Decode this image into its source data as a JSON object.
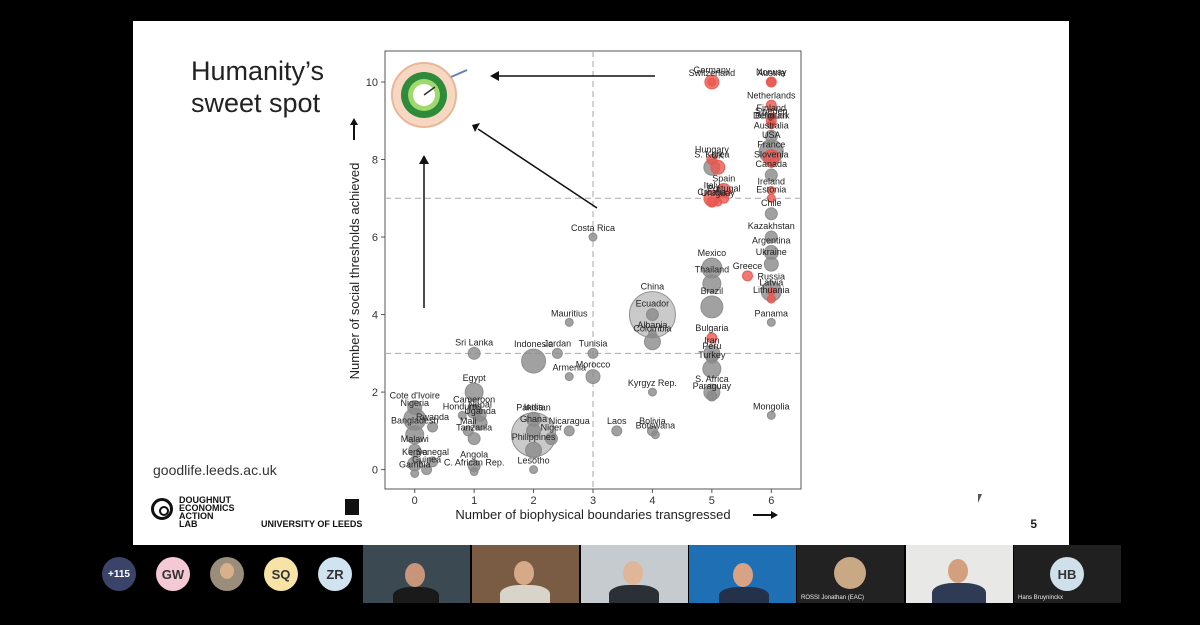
{
  "slide": {
    "title_line1": "Humanity’s",
    "title_line2": "sweet spot",
    "url": "goodlife.leeds.ac.uk",
    "page_number": "5",
    "logo_dea": "DOUGHNUT\nECONOMICS\nACTION\nLAB",
    "logo_leeds": "UNIVERSITY OF LEEDS"
  },
  "chart_data": {
    "type": "scatter",
    "xlabel": "Number of biophysical boundaries transgressed",
    "ylabel": "Number of social thresholds achieved",
    "xlim": [
      -0.5,
      6.5
    ],
    "ylim": [
      -0.5,
      10.8
    ],
    "xticks": [
      "0",
      "1",
      "2",
      "3",
      "4",
      "5",
      "6"
    ],
    "yticks": [
      "0",
      "2",
      "4",
      "6",
      "8",
      "10"
    ],
    "threshold_lines": {
      "x": 3,
      "y_low": 3,
      "y_high": 7
    },
    "colors": {
      "grey": "#8a8a8a",
      "red": "#e8574f"
    },
    "points": [
      {
        "label": "Norway",
        "x": 6,
        "y": 10,
        "r": 5,
        "c": "red"
      },
      {
        "label": "Germany",
        "x": 5,
        "y": 10,
        "r": 7,
        "c": "red"
      },
      {
        "label": "Switzerland",
        "x": 5,
        "y": 10,
        "r": 4,
        "c": "red"
      },
      {
        "label": "Austria",
        "x": 6,
        "y": 10,
        "r": 4,
        "c": "red"
      },
      {
        "label": "Netherlands",
        "x": 6,
        "y": 9.4,
        "r": 5,
        "c": "red"
      },
      {
        "label": "Finland",
        "x": 6,
        "y": 9.1,
        "r": 4,
        "c": "red"
      },
      {
        "label": "Sweden",
        "x": 6,
        "y": 9,
        "r": 5,
        "c": "red"
      },
      {
        "label": "Belgium",
        "x": 6,
        "y": 8.9,
        "r": 4,
        "c": "red"
      },
      {
        "label": "Denmark",
        "x": 6,
        "y": 8.9,
        "r": 4,
        "c": "red"
      },
      {
        "label": "Australia",
        "x": 6,
        "y": 8.6,
        "r": 6,
        "c": "grey"
      },
      {
        "label": "USA",
        "x": 6,
        "y": 8.2,
        "r": 12,
        "c": "grey"
      },
      {
        "label": "Hungary",
        "x": 5,
        "y": 8,
        "r": 5,
        "c": "red"
      },
      {
        "label": "France",
        "x": 6,
        "y": 8.05,
        "r": 8,
        "c": "red"
      },
      {
        "label": "Slovenia",
        "x": 6,
        "y": 7.9,
        "r": 4,
        "c": "red"
      },
      {
        "label": "S. Korea",
        "x": 5,
        "y": 7.8,
        "r": 8,
        "c": "grey"
      },
      {
        "label": "UK",
        "x": 5.1,
        "y": 7.8,
        "r": 7,
        "c": "red"
      },
      {
        "label": "Canada",
        "x": 6,
        "y": 7.6,
        "r": 6,
        "c": "grey"
      },
      {
        "label": "Ireland",
        "x": 6,
        "y": 7.2,
        "r": 4,
        "c": "red"
      },
      {
        "label": "Spain",
        "x": 5.2,
        "y": 7.2,
        "r": 7,
        "c": "red"
      },
      {
        "label": "Italy",
        "x": 5,
        "y": 7,
        "r": 8,
        "c": "red"
      },
      {
        "label": "Estonia",
        "x": 6,
        "y": 7.0,
        "r": 4,
        "c": "red"
      },
      {
        "label": "Croatia",
        "x": 5,
        "y": 6.9,
        "r": 5,
        "c": "red"
      },
      {
        "label": "Portugal",
        "x": 5.2,
        "y": 7.0,
        "r": 5,
        "c": "red"
      },
      {
        "label": "Uruguay",
        "x": 5.1,
        "y": 6.9,
        "r": 4,
        "c": "red"
      },
      {
        "label": "Chile",
        "x": 6,
        "y": 6.6,
        "r": 6,
        "c": "grey"
      },
      {
        "label": "Costa Rica",
        "x": 3,
        "y": 6,
        "r": 4,
        "c": "grey"
      },
      {
        "label": "Kazakhstan",
        "x": 6,
        "y": 6,
        "r": 6,
        "c": "grey"
      },
      {
        "label": "Argentina",
        "x": 6,
        "y": 5.6,
        "r": 7,
        "c": "grey"
      },
      {
        "label": "Ukraine",
        "x": 6,
        "y": 5.3,
        "r": 7,
        "c": "grey"
      },
      {
        "label": "Mexico",
        "x": 5,
        "y": 5.2,
        "r": 10,
        "c": "grey"
      },
      {
        "label": "Greece",
        "x": 5.6,
        "y": 5,
        "r": 5,
        "c": "red"
      },
      {
        "label": "Thailand",
        "x": 5,
        "y": 4.8,
        "r": 9,
        "c": "grey"
      },
      {
        "label": "Russia",
        "x": 6,
        "y": 4.6,
        "r": 10,
        "c": "grey"
      },
      {
        "label": "Latvia",
        "x": 6,
        "y": 4.6,
        "r": 4,
        "c": "red"
      },
      {
        "label": "Brazil",
        "x": 5,
        "y": 4.2,
        "r": 11,
        "c": "grey"
      },
      {
        "label": "Lithuania",
        "x": 6,
        "y": 4.4,
        "r": 4,
        "c": "red"
      },
      {
        "label": "China",
        "x": 4,
        "y": 4,
        "r": 23,
        "c": "grey"
      },
      {
        "label": "Ecuador",
        "x": 4,
        "y": 4,
        "r": 6,
        "c": "grey"
      },
      {
        "label": "Panama",
        "x": 6,
        "y": 3.8,
        "r": 4,
        "c": "grey"
      },
      {
        "label": "Mauritius",
        "x": 2.6,
        "y": 3.8,
        "r": 4,
        "c": "grey"
      },
      {
        "label": "Albania",
        "x": 4,
        "y": 3.5,
        "r": 4,
        "c": "grey"
      },
      {
        "label": "Bulgaria",
        "x": 5,
        "y": 3.4,
        "r": 5,
        "c": "red"
      },
      {
        "label": "Sri Lanka",
        "x": 1,
        "y": 3,
        "r": 6,
        "c": "grey"
      },
      {
        "label": "Indonesia",
        "x": 2,
        "y": 2.8,
        "r": 12,
        "c": "grey"
      },
      {
        "label": "Jordan",
        "x": 2.4,
        "y": 3,
        "r": 5,
        "c": "grey"
      },
      {
        "label": "Tunisia",
        "x": 3,
        "y": 3,
        "r": 5,
        "c": "grey"
      },
      {
        "label": "Colombia",
        "x": 4,
        "y": 3.3,
        "r": 8,
        "c": "grey"
      },
      {
        "label": "Iran",
        "x": 5,
        "y": 3,
        "r": 8,
        "c": "grey"
      },
      {
        "label": "Peru",
        "x": 5,
        "y": 2.9,
        "r": 6,
        "c": "grey"
      },
      {
        "label": "Armenia",
        "x": 2.6,
        "y": 2.4,
        "r": 4,
        "c": "grey"
      },
      {
        "label": "Morocco",
        "x": 3,
        "y": 2.4,
        "r": 7,
        "c": "grey"
      },
      {
        "label": "Turkey",
        "x": 5,
        "y": 2.6,
        "r": 9,
        "c": "grey"
      },
      {
        "label": "Kyrgyz Rep.",
        "x": 4,
        "y": 2,
        "r": 4,
        "c": "grey"
      },
      {
        "label": "S. Africa",
        "x": 5,
        "y": 2,
        "r": 8,
        "c": "grey"
      },
      {
        "label": "Paraguay",
        "x": 5,
        "y": 1.9,
        "r": 5,
        "c": "grey"
      },
      {
        "label": "Egypt",
        "x": 1,
        "y": 2,
        "r": 9,
        "c": "grey"
      },
      {
        "label": "Cote d'Ivoire",
        "x": 0,
        "y": 1.6,
        "r": 7,
        "c": "grey"
      },
      {
        "label": "Cameroon",
        "x": 1,
        "y": 1.5,
        "r": 7,
        "c": "grey"
      },
      {
        "label": "Honduras",
        "x": 0.8,
        "y": 1.4,
        "r": 4,
        "c": "grey"
      },
      {
        "label": "Nepal",
        "x": 1.1,
        "y": 1.4,
        "r": 6,
        "c": "grey"
      },
      {
        "label": "Mongolia",
        "x": 6,
        "y": 1.4,
        "r": 4,
        "c": "grey"
      },
      {
        "label": "Nigeria",
        "x": 0,
        "y": 1.3,
        "r": 11,
        "c": "grey"
      },
      {
        "label": "India",
        "x": 2,
        "y": 1.3,
        "r": 7,
        "c": "grey"
      },
      {
        "label": "Rwanda",
        "x": 0.3,
        "y": 1.1,
        "r": 5,
        "c": "grey"
      },
      {
        "label": "Uganda",
        "x": 1.1,
        "y": 1.2,
        "r": 7,
        "c": "grey"
      },
      {
        "label": "Ghana",
        "x": 2,
        "y": 1.0,
        "r": 7,
        "c": "grey"
      },
      {
        "label": "Nicaragua",
        "x": 2.6,
        "y": 1.0,
        "r": 5,
        "c": "grey"
      },
      {
        "label": "Laos",
        "x": 3.4,
        "y": 1.0,
        "r": 5,
        "c": "grey"
      },
      {
        "label": "Bolivia",
        "x": 4,
        "y": 1.0,
        "r": 5,
        "c": "grey"
      },
      {
        "label": "Mali",
        "x": 0.9,
        "y": 1.0,
        "r": 5,
        "c": "grey"
      },
      {
        "label": "Pakistan",
        "x": 2,
        "y": 0.9,
        "r": 22,
        "c": "grey"
      },
      {
        "label": "Bangladesh",
        "x": 0,
        "y": 0.9,
        "r": 9,
        "c": "grey"
      },
      {
        "label": "Tanzania",
        "x": 1,
        "y": 0.8,
        "r": 6,
        "c": "grey"
      },
      {
        "label": "Botswana",
        "x": 4.05,
        "y": 0.9,
        "r": 4,
        "c": "grey"
      },
      {
        "label": "Niger",
        "x": 2.3,
        "y": 0.8,
        "r": 6,
        "c": "grey"
      },
      {
        "label": "Malawi",
        "x": 0,
        "y": 0.5,
        "r": 6,
        "c": "grey"
      },
      {
        "label": "Philippines",
        "x": 2,
        "y": 0.5,
        "r": 8,
        "c": "grey"
      },
      {
        "label": "Kenya",
        "x": 0,
        "y": 0.15,
        "r": 7,
        "c": "grey"
      },
      {
        "label": "Senegal",
        "x": 0.3,
        "y": 0.2,
        "r": 5,
        "c": "grey"
      },
      {
        "label": "Angola",
        "x": 1,
        "y": 0.1,
        "r": 6,
        "c": "grey"
      },
      {
        "label": "Lesotho",
        "x": 2,
        "y": 0.0,
        "r": 4,
        "c": "grey"
      },
      {
        "label": "Guinea",
        "x": 0.2,
        "y": 0.0,
        "r": 5,
        "c": "grey"
      },
      {
        "label": "C. African Rep.",
        "x": 1,
        "y": -0.05,
        "r": 4,
        "c": "grey"
      },
      {
        "label": "Gambia",
        "x": 0,
        "y": -0.1,
        "r": 4,
        "c": "grey"
      }
    ]
  },
  "participants": {
    "overflow_count": "+115",
    "avatars": [
      {
        "initials": "GW",
        "color": "#f4c9d4"
      },
      {
        "initials": "",
        "color": "#9a8d7c"
      },
      {
        "initials": "SQ",
        "color": "#f7e3a5"
      },
      {
        "initials": "ZR",
        "color": "#cfe4f0"
      },
      {
        "initials": "HB",
        "color": "#cfe0ea"
      }
    ],
    "video_names": [
      "ROSSI Jonathan (EAC)",
      "Hans Bruyninckx"
    ]
  }
}
